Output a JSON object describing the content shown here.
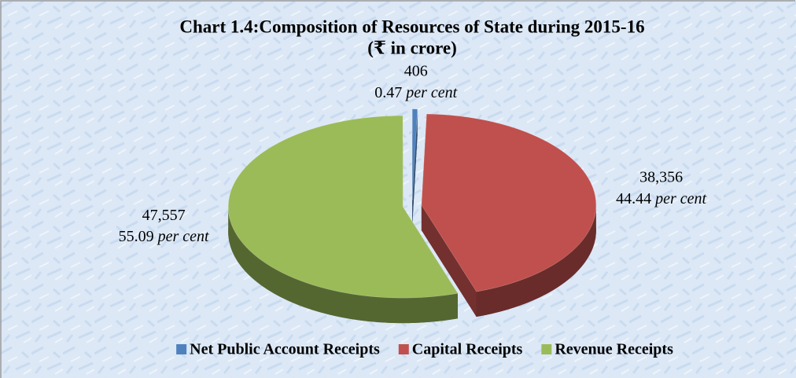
{
  "chart_data": {
    "type": "pie",
    "title": "Chart 1.4:Composition of Resources of State during 2015-16",
    "subtitle": "(₹ in crore)",
    "categories": [
      "Net Public Account Receipts",
      "Capital Receipts",
      "Revenue Receipts"
    ],
    "values": [
      406,
      38356,
      47557
    ],
    "value_labels": [
      "406",
      "38,356",
      "47,557"
    ],
    "percents": [
      0.47,
      44.44,
      55.09
    ],
    "percent_unit": "per cent",
    "colors": [
      "#4f81bd",
      "#c0504d",
      "#9bbb59"
    ],
    "legend": "bottom"
  }
}
